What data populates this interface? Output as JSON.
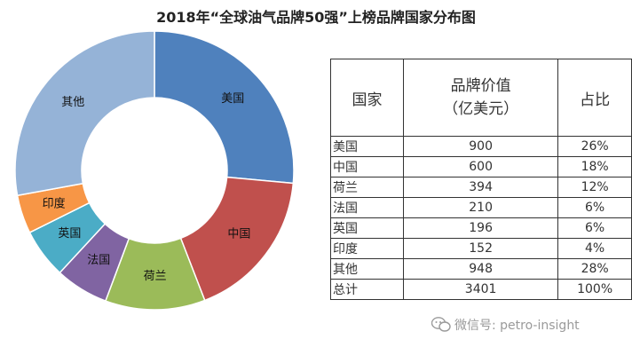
{
  "title": "2018年“全球油气品牌50强”上榜品牌国家分布图",
  "chart_data": {
    "type": "pie",
    "categories": [
      "美国",
      "中国",
      "荷兰",
      "法国",
      "英国",
      "印度",
      "其他"
    ],
    "values": [
      900,
      600,
      394,
      210,
      196,
      152,
      948
    ],
    "percents": [
      "26%",
      "18%",
      "12%",
      "6%",
      "6%",
      "4%",
      "28%"
    ],
    "colors": [
      "#4F81BD",
      "#C0504D",
      "#9BBB59",
      "#8064A2",
      "#4BACC6",
      "#F79646",
      "#95B3D7"
    ],
    "legend": "none"
  },
  "table": {
    "headers": [
      "国家",
      [
        "品牌价值",
        "（亿美元）"
      ],
      "占比"
    ],
    "rows": [
      [
        "美国",
        "900",
        "26%"
      ],
      [
        "中国",
        "600",
        "18%"
      ],
      [
        "荷兰",
        "394",
        "12%"
      ],
      [
        "法国",
        "210",
        "6%"
      ],
      [
        "英国",
        "196",
        "6%"
      ],
      [
        "印度",
        "152",
        "4%"
      ],
      [
        "其他",
        "948",
        "28%"
      ],
      [
        "总计",
        "3401",
        "100%"
      ]
    ]
  },
  "watermark": {
    "text": "微信号: petro-insight",
    "icon": "wechat-icon"
  }
}
